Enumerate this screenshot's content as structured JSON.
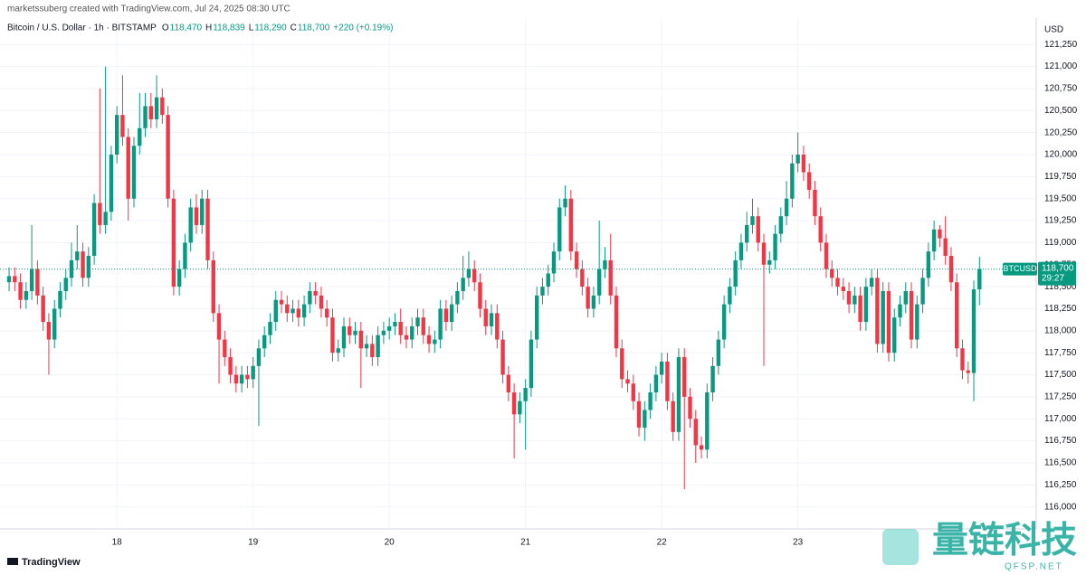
{
  "header": "marketssuberg created with TradingView.com, Jul 24, 2025 08:30 UTC",
  "footer": "TradingView",
  "watermark": {
    "name": "量链科技",
    "url": "QFSP.NET"
  },
  "chart_data": {
    "type": "candlestick",
    "symbol": "Bitcoin / U.S. Dollar · 1h · BITSTAMP",
    "legend_values": [
      {
        "key": "O",
        "value": "118,470"
      },
      {
        "key": "H",
        "value": "118,839"
      },
      {
        "key": "L",
        "value": "118,290"
      },
      {
        "key": "C",
        "value": "118,700"
      }
    ],
    "change": "+220 (+0.19%)",
    "currency": "USD",
    "symbol_tag": "BTCUSD",
    "last_price": {
      "value": 118700,
      "label": "118,700"
    },
    "countdown": "29:27",
    "up_color": "#089981",
    "down_color": "#f23645",
    "grid": true,
    "xlim": [
      -1.6,
      181
    ],
    "xticks": [
      {
        "value": 19,
        "label": "18"
      },
      {
        "value": 43,
        "label": "19"
      },
      {
        "value": 67,
        "label": "20"
      },
      {
        "value": 91,
        "label": "21"
      },
      {
        "value": 115,
        "label": "22"
      },
      {
        "value": 139,
        "label": "23"
      }
    ],
    "ylim": [
      115750,
      121550
    ],
    "yticks": [
      {
        "value": 116000,
        "label": "116,000"
      },
      {
        "value": 116250,
        "label": "116,250"
      },
      {
        "value": 116500,
        "label": "116,500"
      },
      {
        "value": 116750,
        "label": "116,750"
      },
      {
        "value": 117000,
        "label": "117,000"
      },
      {
        "value": 117250,
        "label": "117,250"
      },
      {
        "value": 117500,
        "label": "117,500"
      },
      {
        "value": 117750,
        "label": "117,750"
      },
      {
        "value": 118000,
        "label": "118,000"
      },
      {
        "value": 118250,
        "label": "118,250"
      },
      {
        "value": 118500,
        "label": "118,500"
      },
      {
        "value": 118750,
        "label": "118,750"
      },
      {
        "value": 119000,
        "label": "119,000"
      },
      {
        "value": 119250,
        "label": "119,250"
      },
      {
        "value": 119500,
        "label": "119,500"
      },
      {
        "value": 119750,
        "label": "119,750"
      },
      {
        "value": 120000,
        "label": "120,000"
      },
      {
        "value": 120250,
        "label": "120,250"
      },
      {
        "value": 120500,
        "label": "120,500"
      },
      {
        "value": 120750,
        "label": "120,750"
      },
      {
        "value": 121000,
        "label": "121,000"
      },
      {
        "value": 121250,
        "label": "121,250"
      }
    ],
    "open": [
      118550,
      118620,
      118550,
      118350,
      118450,
      118700,
      118400,
      118100,
      117900,
      118250,
      118450,
      118600,
      118800,
      118900,
      118600,
      118850,
      119450,
      119200,
      119350,
      120000,
      120450,
      120200,
      119500,
      120100,
      120300,
      120550,
      120400,
      120650,
      120450,
      119500,
      118500,
      118700,
      119000,
      119400,
      119200,
      119500,
      118800,
      118200,
      117900,
      117700,
      117500,
      117400,
      117500,
      117450,
      117600,
      117800,
      117950,
      118100,
      118350,
      118300,
      118200,
      118250,
      118150,
      118300,
      118450,
      118400,
      118250,
      118150,
      117750,
      117800,
      118050,
      117950,
      118000,
      117800,
      117850,
      117700,
      117950,
      118000,
      118050,
      118100,
      117950,
      117900,
      118050,
      118150,
      117950,
      117850,
      117900,
      118250,
      118100,
      118300,
      118450,
      118600,
      118700,
      118550,
      118250,
      118050,
      118200,
      117900,
      117500,
      117300,
      117050,
      117200,
      117350,
      117900,
      118400,
      118500,
      118650,
      118900,
      119400,
      119500,
      118900,
      118700,
      118500,
      118250,
      118400,
      118700,
      118800,
      118400,
      117800,
      117450,
      117400,
      117200,
      116900,
      117100,
      117300,
      117500,
      117650,
      117200,
      116850,
      117700,
      117250,
      117000,
      116700,
      116650,
      117300,
      117600,
      117900,
      118300,
      118500,
      118800,
      119000,
      119200,
      119300,
      119000,
      118750,
      118800,
      119100,
      119300,
      119500,
      119900,
      120000,
      119800,
      119600,
      119300,
      119000,
      118700,
      118600,
      118500,
      118450,
      118300,
      118400,
      118100,
      118500,
      118600,
      117850,
      118450,
      117750,
      118150,
      118300,
      118450,
      117900,
      118300,
      118600,
      118900,
      119150,
      119050,
      118850,
      118550,
      117800,
      117550,
      117520,
      118470
    ],
    "high": [
      118720,
      118720,
      118650,
      118550,
      119200,
      118800,
      118500,
      118200,
      118350,
      118550,
      118700,
      119000,
      119200,
      119000,
      118950,
      119550,
      120750,
      121000,
      120100,
      120550,
      120900,
      120300,
      120200,
      120700,
      120700,
      120700,
      120900,
      120750,
      120550,
      119600,
      118800,
      119100,
      119500,
      119550,
      119600,
      119600,
      118900,
      118300,
      118000,
      117800,
      117600,
      117600,
      117600,
      117700,
      117900,
      118050,
      118200,
      118450,
      118450,
      118400,
      118350,
      118350,
      118400,
      118550,
      118550,
      118500,
      118350,
      118250,
      117900,
      118150,
      118150,
      118100,
      118100,
      117950,
      117950,
      118050,
      118100,
      118150,
      118200,
      118250,
      118050,
      118150,
      118250,
      118250,
      118050,
      118000,
      118350,
      118350,
      118400,
      118550,
      118850,
      118900,
      118800,
      118650,
      118350,
      118300,
      118300,
      118000,
      117600,
      117400,
      117300,
      117450,
      118000,
      118500,
      118600,
      118750,
      119000,
      119500,
      119650,
      119600,
      119000,
      118800,
      118600,
      118500,
      119250,
      118950,
      119100,
      118500,
      117900,
      117550,
      117500,
      117300,
      117200,
      117400,
      117600,
      117750,
      117750,
      117300,
      117800,
      117800,
      117350,
      117100,
      116800,
      117400,
      117700,
      118000,
      118400,
      118600,
      118900,
      119100,
      119350,
      119500,
      119400,
      119100,
      118900,
      119200,
      119400,
      119700,
      120000,
      120250,
      120100,
      119900,
      119700,
      119400,
      119100,
      118800,
      118700,
      118600,
      118550,
      118500,
      118500,
      118600,
      118700,
      118700,
      118550,
      118550,
      118250,
      118400,
      118550,
      118550,
      118400,
      118700,
      119000,
      119250,
      119200,
      119300,
      118950,
      118650,
      117900,
      117650,
      118570,
      118839
    ],
    "low": [
      118450,
      118450,
      118250,
      118250,
      118350,
      118300,
      118000,
      117500,
      117800,
      118150,
      118350,
      118500,
      118700,
      118500,
      118500,
      118750,
      119100,
      119100,
      119250,
      119900,
      120100,
      119250,
      119400,
      120000,
      120200,
      120300,
      120300,
      120350,
      119400,
      118400,
      118400,
      118600,
      118900,
      119100,
      119100,
      118700,
      118100,
      117400,
      117600,
      117400,
      117300,
      117300,
      117350,
      117350,
      116920,
      117700,
      117850,
      118000,
      118200,
      118100,
      118100,
      118050,
      118050,
      118200,
      118300,
      118150,
      118050,
      117650,
      117650,
      117700,
      117850,
      117850,
      117350,
      117700,
      117600,
      117600,
      117850,
      117900,
      117950,
      117850,
      117800,
      117800,
      117950,
      117850,
      117750,
      117750,
      117800,
      118000,
      118000,
      118200,
      118350,
      118500,
      118450,
      118150,
      117950,
      117950,
      117800,
      117400,
      117200,
      116550,
      116950,
      116650,
      117250,
      117800,
      118300,
      118400,
      118550,
      118800,
      119300,
      118800,
      118600,
      118400,
      118150,
      118150,
      118300,
      118600,
      118300,
      117700,
      117350,
      117300,
      117100,
      116800,
      116750,
      117000,
      117200,
      117400,
      117100,
      116750,
      116750,
      116200,
      116900,
      116500,
      116550,
      116550,
      117200,
      117500,
      117800,
      118200,
      118400,
      118700,
      118900,
      119100,
      118900,
      117600,
      118650,
      118700,
      119000,
      119200,
      119400,
      119800,
      119700,
      119500,
      119200,
      118900,
      118600,
      118500,
      118400,
      118350,
      118200,
      118200,
      118000,
      118000,
      118400,
      117750,
      117750,
      117650,
      117650,
      118050,
      118200,
      117800,
      117800,
      118200,
      118500,
      118800,
      118950,
      118750,
      118450,
      117700,
      117450,
      117400,
      117200,
      118290
    ],
    "close": [
      118620,
      118550,
      118350,
      118450,
      118700,
      118400,
      118100,
      117900,
      118250,
      118450,
      118600,
      118800,
      118900,
      118600,
      118850,
      119450,
      119200,
      119350,
      120000,
      120450,
      120200,
      119500,
      120100,
      120300,
      120550,
      120400,
      120650,
      120450,
      119500,
      118500,
      118700,
      119000,
      119400,
      119200,
      119500,
      118800,
      118200,
      117900,
      117700,
      117500,
      117400,
      117500,
      117450,
      117600,
      117800,
      117950,
      118100,
      118350,
      118300,
      118200,
      118250,
      118150,
      118300,
      118450,
      118400,
      118250,
      118150,
      117750,
      117800,
      118050,
      117950,
      118000,
      117800,
      117850,
      117700,
      117950,
      118000,
      118050,
      118100,
      117950,
      117900,
      118050,
      118150,
      117950,
      117850,
      117900,
      118250,
      118100,
      118300,
      118450,
      118600,
      118700,
      118550,
      118250,
      118050,
      118200,
      117900,
      117500,
      117300,
      117050,
      117200,
      117350,
      117900,
      118400,
      118500,
      118650,
      118900,
      119400,
      119500,
      118900,
      118700,
      118500,
      118250,
      118400,
      118700,
      118800,
      118400,
      117800,
      117450,
      117400,
      117200,
      116900,
      117100,
      117300,
      117500,
      117650,
      117200,
      116850,
      117700,
      117250,
      117000,
      116700,
      116650,
      117300,
      117600,
      117900,
      118300,
      118500,
      118800,
      119000,
      119200,
      119300,
      119000,
      118750,
      118800,
      119100,
      119300,
      119500,
      119900,
      120000,
      119800,
      119600,
      119300,
      119000,
      118700,
      118600,
      118500,
      118450,
      118300,
      118400,
      118100,
      118500,
      118600,
      117850,
      118450,
      117750,
      118150,
      118300,
      118450,
      117900,
      118300,
      118600,
      118900,
      119150,
      119050,
      118850,
      118550,
      117800,
      117550,
      117520,
      118470,
      118700
    ]
  }
}
